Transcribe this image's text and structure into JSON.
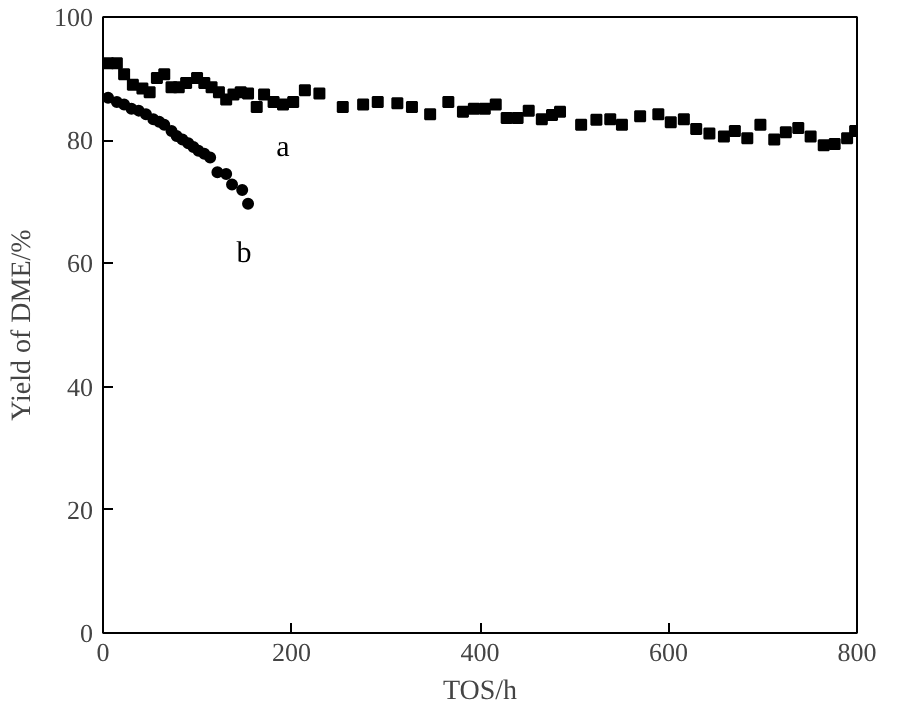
{
  "chart_data": {
    "type": "scatter",
    "xlabel": "TOS/h",
    "ylabel": "Yield of DME/%",
    "xlim": [
      0,
      800
    ],
    "ylim": [
      0,
      100
    ],
    "xticks": [
      0,
      200,
      400,
      600,
      800
    ],
    "yticks": [
      0,
      20,
      40,
      60,
      80,
      100
    ],
    "grid": false,
    "legend": false,
    "series": [
      {
        "name": "a",
        "color": "#000000",
        "marker": "square",
        "x": [
          5.4,
          14.7,
          22.4,
          31.7,
          41.8,
          49.5,
          57.2,
          65.0,
          72.7,
          80.4,
          88.2,
          99.8,
          107.5,
          115.2,
          123,
          130.7,
          138.4,
          146.1,
          153.9,
          163.1,
          170.9,
          181,
          191,
          201.8,
          214.2,
          229.6,
          254.4,
          276,
          291.5,
          312.3,
          327.8,
          347.1,
          366.4,
          381.9,
          393.5,
          405.1,
          416.7,
          428.3,
          439.9,
          451.7,
          465.6,
          476.4,
          484.9,
          507.3,
          523.5,
          538.2,
          550.6,
          569.9,
          589.2,
          602.4,
          616.3,
          629.4,
          643.4,
          658.8,
          670.4,
          683.6,
          697.5,
          712.2,
          724.5,
          737.7,
          750.8,
          764.7,
          776.3,
          789.5,
          798
        ],
        "values": [
          92.5,
          92.5,
          90.7,
          89.0,
          88.4,
          87.8,
          90.1,
          90.7,
          88.6,
          88.6,
          89.3,
          90.1,
          89.3,
          88.6,
          87.8,
          86.6,
          87.4,
          87.8,
          87.6,
          85.4,
          87.4,
          86.2,
          85.8,
          86.2,
          88.1,
          87.6,
          85.4,
          85.8,
          86.2,
          86.0,
          85.4,
          84.2,
          86.2,
          84.6,
          85.1,
          85.1,
          85.8,
          83.6,
          83.6,
          84.8,
          83.4,
          84.1,
          84.6,
          82.5,
          83.3,
          83.4,
          82.5,
          83.9,
          84.2,
          82.9,
          83.4,
          81.8,
          81.1,
          80.6,
          81.5,
          80.3,
          82.5,
          80.1,
          81.3,
          82.0,
          80.6,
          79.2,
          79.4,
          80.3,
          81.5
        ]
      },
      {
        "name": "b",
        "color": "#000000",
        "marker": "circle",
        "x": [
          5.4,
          14.7,
          22.4,
          30.2,
          37.9,
          45.6,
          53.4,
          59.6,
          65,
          72.7,
          78.1,
          84.3,
          90.5,
          95.9,
          101.3,
          107.5,
          113.7,
          121.4,
          130.7,
          136.9,
          147.7,
          153.9
        ],
        "values": [
          86.9,
          86.2,
          85.8,
          85.1,
          84.8,
          84.2,
          83.4,
          83.0,
          82.5,
          81.5,
          80.7,
          80.1,
          79.5,
          78.9,
          78.3,
          77.8,
          77.2,
          74.8,
          74.5,
          72.8,
          71.9,
          69.7
        ]
      }
    ]
  }
}
